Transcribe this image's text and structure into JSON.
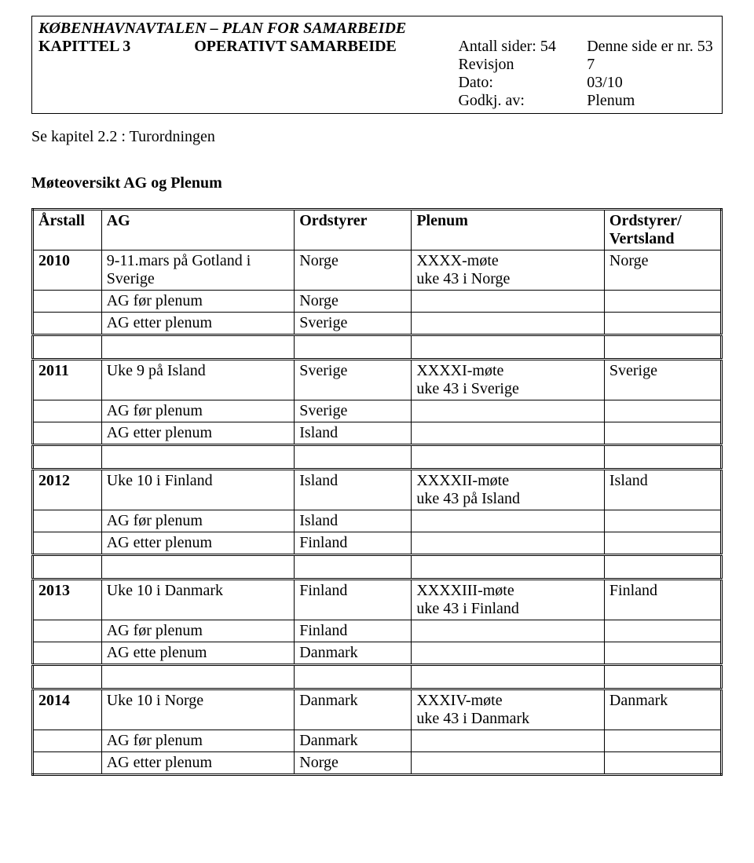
{
  "header": {
    "doc_title": "KØBENHAVNAVTALEN – PLAN FOR SAMARBEIDE",
    "chapter_label": "KAPITTEL 3",
    "chapter_title": "OPERATIVT SAMARBEIDE",
    "pages_label": "Antall sider:",
    "pages_value": "54",
    "page_label": "Denne side er nr.",
    "page_value": "53",
    "rev_label": "Revisjon",
    "rev_value": "7",
    "date_label": "Dato:",
    "date_value": "03/10",
    "approved_label": "Godkj. av:",
    "approved_value": "Plenum"
  },
  "subtitle": "Se kapitel 2.2 : Turordningen",
  "section_title": "Møteoversikt AG og Plenum",
  "columns": {
    "c1": "Årstall",
    "c2": "AG",
    "c3": "Ordstyrer",
    "c4": "Plenum",
    "c5": "Ordstyrer/ Vertsland"
  },
  "rows": [
    {
      "y": "2010",
      "ag": "9-11.mars på Gotland i Sverige",
      "ord": "Norge",
      "pl": "XXXX-møte\nuke 43 i Norge",
      "ov": "Norge"
    },
    {
      "y": "",
      "ag": "AG før plenum",
      "ord": "Norge",
      "pl": "",
      "ov": ""
    },
    {
      "y": "",
      "ag": "AG etter plenum",
      "ord": "Sverige",
      "pl": "",
      "ov": ""
    },
    {
      "y": "2011",
      "ag": "Uke 9 på Island",
      "ord": "Sverige",
      "pl": "XXXXI-møte\nuke 43 i Sverige",
      "ov": "Sverige"
    },
    {
      "y": "",
      "ag": "AG før plenum",
      "ord": "Sverige",
      "pl": "",
      "ov": ""
    },
    {
      "y": "",
      "ag": "AG etter plenum",
      "ord": "Island",
      "pl": "",
      "ov": ""
    },
    {
      "y": "2012",
      "ag": "Uke 10 i Finland",
      "ord": "Island",
      "pl": "XXXXII-møte\nuke 43 på Island",
      "ov": "Island"
    },
    {
      "y": "",
      "ag": "AG før plenum",
      "ord": "Island",
      "pl": "",
      "ov": ""
    },
    {
      "y": "",
      "ag": "AG etter plenum",
      "ord": "Finland",
      "pl": "",
      "ov": ""
    },
    {
      "y": "2013",
      "ag": "Uke 10 i Danmark",
      "ord": "Finland",
      "pl": "XXXXIII-møte\nuke 43 i Finland",
      "ov": "Finland"
    },
    {
      "y": "",
      "ag": "AG før plenum",
      "ord": "Finland",
      "pl": "",
      "ov": ""
    },
    {
      "y": "",
      "ag": "AG ette plenum",
      "ord": "Danmark",
      "pl": "",
      "ov": ""
    },
    {
      "y": "2014",
      "ag": "Uke 10 i Norge",
      "ord": "Danmark",
      "pl": "XXXIV-møte\nuke 43 i Danmark",
      "ov": "Danmark"
    },
    {
      "y": "",
      "ag": "AG før plenum",
      "ord": "Danmark",
      "pl": "",
      "ov": ""
    },
    {
      "y": "",
      "ag": "AG etter plenum",
      "ord": "Norge",
      "pl": "",
      "ov": ""
    }
  ]
}
